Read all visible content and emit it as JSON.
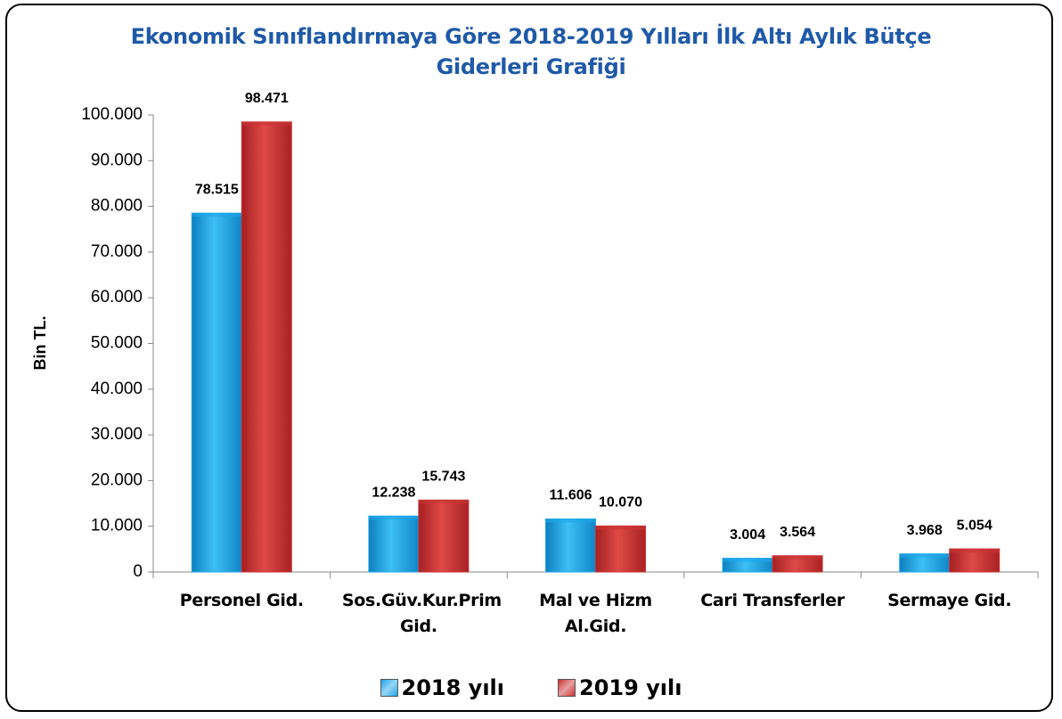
{
  "chart_data": {
    "type": "bar",
    "title": "Ekonomik Sınıflandırmaya Göre  2018-2019 Yılları İlk Altı Aylık Bütçe Giderleri Grafiği",
    "y_label": "Bin TL.",
    "categories": [
      "Personel Gid.",
      "Sos.Güv.Kur.Prim Gid.",
      "Mal ve Hizm Al.Gid.",
      "Cari Transferler",
      "Sermaye Gid."
    ],
    "series": [
      {
        "name": "2018 yılı",
        "color": "#1ea6ea",
        "values": [
          78515,
          12238,
          11606,
          3004,
          3968
        ],
        "value_labels": [
          "78.515",
          "12.238",
          "11.606",
          "3.004",
          "3.968"
        ]
      },
      {
        "name": "2019 yılı",
        "color": "#cc3333",
        "values": [
          98471,
          15743,
          10070,
          3564,
          5054
        ],
        "value_labels": [
          "98.471",
          "15.743",
          "10.070",
          "3.564",
          "5.054"
        ]
      }
    ],
    "ylim": [
      0,
      100000
    ],
    "yticks": [
      0,
      {
        "value": 10000,
        "label": "10.000"
      },
      {
        "value": 20000,
        "label": "20.000"
      },
      {
        "value": 30000,
        "label": "30.000"
      },
      {
        "value": 40000,
        "label": "40.000"
      },
      {
        "value": 50000,
        "label": "50.000"
      },
      {
        "value": 60000,
        "label": "60.000"
      },
      {
        "value": 70000,
        "label": "70.000"
      },
      {
        "value": 80000,
        "label": "80.000"
      },
      {
        "value": 90000,
        "label": "90.000"
      },
      {
        "value": 100000,
        "label": "100.000"
      }
    ],
    "legend": "bottom"
  }
}
